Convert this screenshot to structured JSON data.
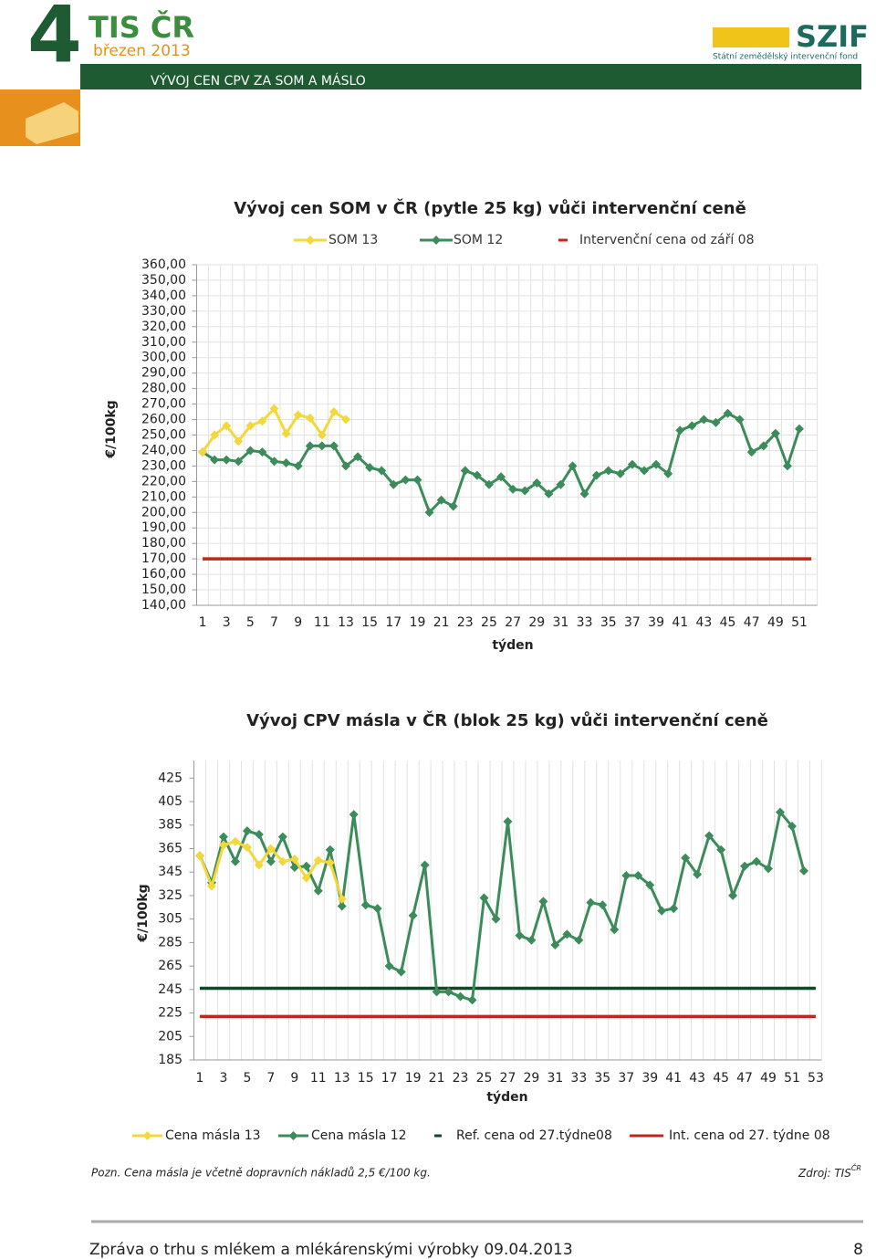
{
  "header": {
    "number": "4",
    "brand": "TIS ČR",
    "date": "březen 2013",
    "section": "VÝVOJ CEN CPV ZA SOM A MÁSLO",
    "logo": "SZIF",
    "logo_subtitle": "Státní zemědělský intervenční fond"
  },
  "chart_data": [
    {
      "type": "line",
      "title": "Vývoj cen SOM v ČR (pytle 25 kg) vůči intervenční ceně",
      "x_label": "týden",
      "y_label": "€/100kg",
      "categories": [
        1,
        null,
        3,
        null,
        5,
        null,
        7,
        null,
        9,
        null,
        11,
        null,
        13,
        null,
        15,
        null,
        17,
        null,
        19,
        null,
        21,
        null,
        23,
        null,
        25,
        null,
        27,
        null,
        29,
        null,
        31,
        null,
        33,
        null,
        35,
        null,
        37,
        null,
        39,
        null,
        41,
        null,
        43,
        null,
        45,
        null,
        47,
        null,
        49,
        null,
        51,
        null
      ],
      "series": [
        {
          "name": "SOM 13",
          "color": "#f2d83a",
          "marker": "diamond",
          "values": [
            239,
            250,
            256,
            246,
            256,
            259,
            267,
            251,
            263,
            261,
            250,
            265,
            260,
            null,
            null,
            null,
            null,
            null,
            null,
            null,
            null,
            null,
            null,
            null,
            null,
            null,
            null,
            null,
            null,
            null,
            null,
            null,
            null,
            null,
            null,
            null,
            null,
            null,
            null,
            null,
            null,
            null,
            null,
            null,
            null,
            null,
            null,
            null,
            null,
            null,
            null,
            null
          ]
        },
        {
          "name": "SOM 12",
          "color": "#3b8c5a",
          "marker": "diamond",
          "values": [
            239,
            234,
            234,
            233,
            240,
            239,
            233,
            232,
            230,
            243,
            243,
            243,
            230,
            236,
            229,
            227,
            218,
            221,
            221,
            200,
            208,
            204,
            227,
            224,
            218,
            223,
            215,
            214,
            219,
            212,
            218,
            230,
            212,
            224,
            227,
            225,
            231,
            227,
            231,
            225,
            253,
            256,
            260,
            258,
            264,
            260,
            239,
            243,
            251,
            230,
            254,
            null
          ]
        },
        {
          "name": "Intervenční cena od září 08",
          "color": "#c0261c",
          "marker": "none",
          "values": [
            170,
            170,
            170,
            170,
            170,
            170,
            170,
            170,
            170,
            170,
            170,
            170,
            170,
            170,
            170,
            170,
            170,
            170,
            170,
            170,
            170,
            170,
            170,
            170,
            170,
            170,
            170,
            170,
            170,
            170,
            170,
            170,
            170,
            170,
            170,
            170,
            170,
            170,
            170,
            170,
            170,
            170,
            170,
            170,
            170,
            170,
            170,
            170,
            170,
            170,
            170,
            170
          ]
        }
      ],
      "ylim": [
        140,
        360
      ],
      "yticks": [
        {
          "value": 140,
          "label": "140,00"
        },
        {
          "value": 150,
          "label": "150,00"
        },
        {
          "value": 160,
          "label": "160,00"
        },
        {
          "value": 170,
          "label": "170,00"
        },
        {
          "value": 180,
          "label": "180,00"
        },
        {
          "value": 190,
          "label": "190,00"
        },
        {
          "value": 200,
          "label": "200,00"
        },
        {
          "value": 210,
          "label": "210,00"
        },
        {
          "value": 220,
          "label": "220,00"
        },
        {
          "value": 230,
          "label": "230,00"
        },
        {
          "value": 240,
          "label": "240,00"
        },
        {
          "value": 250,
          "label": "250,00"
        },
        {
          "value": 260,
          "label": "260,00"
        },
        {
          "value": 270,
          "label": "270,00"
        },
        {
          "value": 280,
          "label": "280,00"
        },
        {
          "value": 290,
          "label": "290,00"
        },
        {
          "value": 300,
          "label": "300,00"
        },
        {
          "value": 310,
          "label": "310,00"
        },
        {
          "value": 320,
          "label": "320,00"
        },
        {
          "value": 330,
          "label": "330,00"
        },
        {
          "value": 340,
          "label": "340,00"
        },
        {
          "value": 350,
          "label": "350,00"
        },
        {
          "value": 360,
          "label": "360,00"
        }
      ],
      "grid": "both",
      "legend": "top"
    },
    {
      "type": "line",
      "title": "Vývoj CPV másla v ČR (blok 25 kg) vůči intervenční ceně",
      "x_label": "týden",
      "y_label": "€/100kg",
      "categories": [
        1,
        null,
        3,
        null,
        5,
        null,
        7,
        null,
        9,
        null,
        11,
        null,
        13,
        null,
        15,
        null,
        17,
        null,
        19,
        null,
        21,
        null,
        23,
        null,
        25,
        null,
        27,
        null,
        29,
        null,
        31,
        null,
        33,
        null,
        35,
        null,
        37,
        null,
        39,
        null,
        41,
        null,
        43,
        null,
        45,
        null,
        47,
        null,
        49,
        null,
        51,
        null,
        53
      ],
      "series": [
        {
          "name": "Cena másla 13",
          "color": "#f2d83a",
          "marker": "diamond",
          "values": [
            359,
            333,
            368,
            371,
            366,
            351,
            365,
            354,
            356,
            340,
            355,
            353,
            322,
            null,
            null,
            null,
            null,
            null,
            null,
            null,
            null,
            null,
            null,
            null,
            null,
            null,
            null,
            null,
            null,
            null,
            null,
            null,
            null,
            null,
            null,
            null,
            null,
            null,
            null,
            null,
            null,
            null,
            null,
            null,
            null,
            null,
            null,
            null,
            null,
            null,
            null,
            null,
            null
          ]
        },
        {
          "name": "Cena másla 12",
          "color": "#3b8c5a",
          "marker": "diamond",
          "values": [
            359,
            336,
            375,
            354,
            380,
            377,
            354,
            375,
            349,
            350,
            329,
            364,
            316,
            394,
            317,
            314,
            265,
            260,
            308,
            351,
            243,
            243,
            239,
            236,
            323,
            305,
            388,
            291,
            287,
            320,
            283,
            292,
            287,
            319,
            317,
            296,
            342,
            342,
            334,
            312,
            314,
            357,
            343,
            376,
            364,
            325,
            350,
            354,
            348,
            396,
            384,
            346,
            null
          ]
        },
        {
          "name": "Ref. cena od 27.týdne08",
          "color": "#0f4a28",
          "marker": "none",
          "values": [
            246,
            246,
            246,
            246,
            246,
            246,
            246,
            246,
            246,
            246,
            246,
            246,
            246,
            246,
            246,
            246,
            246,
            246,
            246,
            246,
            246,
            246,
            246,
            246,
            246,
            246,
            246,
            246,
            246,
            246,
            246,
            246,
            246,
            246,
            246,
            246,
            246,
            246,
            246,
            246,
            246,
            246,
            246,
            246,
            246,
            246,
            246,
            246,
            246,
            246,
            246,
            246,
            246
          ]
        },
        {
          "name": "Int. cena od 27. týdne 08",
          "color": "#c0261c",
          "marker": "none",
          "values": [
            222,
            222,
            222,
            222,
            222,
            222,
            222,
            222,
            222,
            222,
            222,
            222,
            222,
            222,
            222,
            222,
            222,
            222,
            222,
            222,
            222,
            222,
            222,
            222,
            222,
            222,
            222,
            222,
            222,
            222,
            222,
            222,
            222,
            222,
            222,
            222,
            222,
            222,
            222,
            222,
            222,
            222,
            222,
            222,
            222,
            222,
            222,
            222,
            222,
            222,
            222,
            222,
            222
          ]
        }
      ],
      "ylim": [
        185,
        440
      ],
      "yticks": [
        185,
        205,
        225,
        245,
        265,
        285,
        305,
        325,
        345,
        365,
        385,
        405,
        425
      ],
      "grid": "x",
      "legend": "bottom"
    }
  ],
  "note": "Pozn. Cena másla je včetně dopravních nákladů 2,5 €/100 kg.",
  "source": {
    "text": "Zdroj: TIS",
    "superscript": "ČR"
  },
  "footer": {
    "text": "Zpráva o trhu s mlékem a mlékárenskými výrobky 09.04.2013",
    "page": "8"
  }
}
